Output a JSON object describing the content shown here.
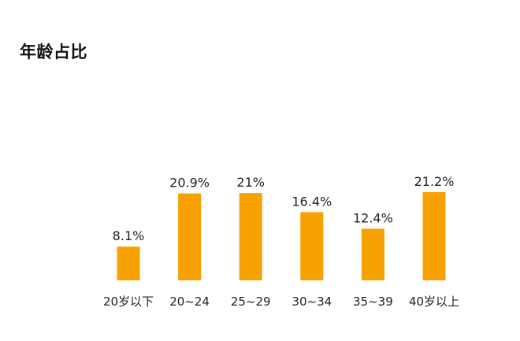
{
  "chart_data": {
    "type": "bar",
    "title": "年龄占比",
    "categories": [
      "20岁以下",
      "20~24",
      "25~29",
      "30~34",
      "35~39",
      "40岁以上"
    ],
    "values": [
      8.1,
      20.9,
      21,
      16.4,
      12.4,
      21.2
    ],
    "data_labels": [
      "8.1%",
      "20.9%",
      "21%",
      "16.4%",
      "12.4%",
      "21.2%"
    ],
    "unit": "%",
    "ylim": [
      0,
      21.2
    ],
    "grid": false,
    "legend": "none",
    "bar_color": "#F7A102"
  }
}
